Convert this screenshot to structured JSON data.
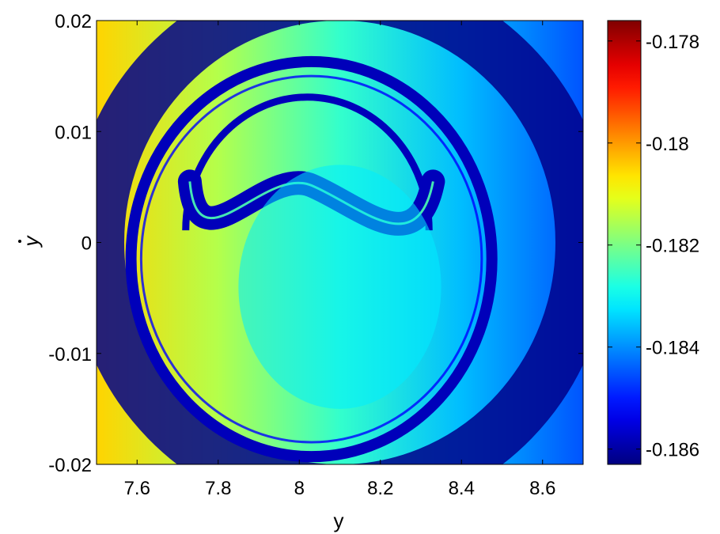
{
  "chart_data": {
    "type": "heatmap",
    "title": "",
    "xlabel": "y",
    "ylabel": "y",
    "ylabel_accent": "dot",
    "xlim": [
      7.5,
      8.7
    ],
    "ylim": [
      -0.02,
      0.02
    ],
    "x_ticks": [
      {
        "value": 7.6,
        "label": "7.6"
      },
      {
        "value": 7.8,
        "label": "7.8"
      },
      {
        "value": 8.0,
        "label": "8"
      },
      {
        "value": 8.2,
        "label": "8.2"
      },
      {
        "value": 8.4,
        "label": "8.4"
      },
      {
        "value": 8.6,
        "label": "8.6"
      }
    ],
    "y_ticks": [
      {
        "value": 0.02,
        "label": "0.02"
      },
      {
        "value": 0.01,
        "label": "0.01"
      },
      {
        "value": 0.0,
        "label": "0"
      },
      {
        "value": -0.01,
        "label": "-0.01"
      },
      {
        "value": -0.02,
        "label": "-0.02"
      }
    ],
    "colorbar": {
      "range": [
        -0.1863,
        -0.1776
      ],
      "colormap": "jet",
      "ticks": [
        {
          "value": -0.178,
          "label": "-0.178"
        },
        {
          "value": -0.18,
          "label": "-0.18"
        },
        {
          "value": -0.182,
          "label": "-0.182"
        },
        {
          "value": -0.184,
          "label": "-0.184"
        },
        {
          "value": -0.186,
          "label": "-0.186"
        }
      ]
    },
    "background_gradient": [
      {
        "x": 7.5,
        "value": -0.1805
      },
      {
        "x": 7.8,
        "value": -0.1815
      },
      {
        "x": 8.1,
        "value": -0.1826
      },
      {
        "x": 8.4,
        "value": -0.1836
      },
      {
        "x": 8.7,
        "value": -0.1845
      }
    ],
    "features": [
      {
        "name": "outer-dark-band",
        "center": [
          8.1,
          0.0
        ],
        "radii": [
          0.6,
          0.0225
        ],
        "value": -0.1862
      },
      {
        "name": "inner-blue-ring",
        "center": [
          8.03,
          -0.0015
        ],
        "radii": [
          0.445,
          0.0178
        ],
        "value": -0.1858
      },
      {
        "name": "inner-ring-edge",
        "center": [
          8.03,
          -0.0015
        ],
        "radii": [
          0.42,
          0.0165
        ],
        "value": -0.1852
      },
      {
        "name": "upper-arc",
        "center": [
          8.02,
          0.0035
        ],
        "radii": [
          0.3,
          0.012
        ],
        "value": -0.1858
      },
      {
        "name": "tadpole-band",
        "x": [
          7.73,
          8.33
        ],
        "y": [
          0.0055,
          0.001
        ],
        "value": -0.1858
      },
      {
        "name": "lower-core",
        "center": [
          8.1,
          -0.004
        ],
        "radii": [
          0.25,
          0.011
        ],
        "value": -0.1832
      }
    ]
  }
}
